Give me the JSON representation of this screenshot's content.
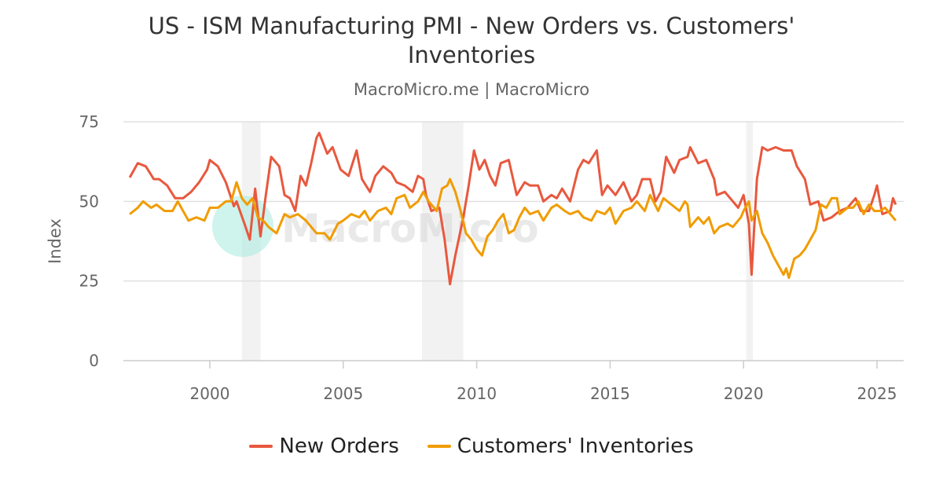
{
  "chart_data": {
    "type": "line",
    "title": "US - ISM Manufacturing PMI - New Orders vs. Customers' Inventories",
    "subtitle": "MacroMicro.me | MacroMicro",
    "watermark": "MacroMicro",
    "xlabel": "",
    "ylabel": "Index",
    "xlim": [
      1996.7,
      2026.0
    ],
    "ylim": [
      0,
      75
    ],
    "x_ticks": [
      "2000",
      "2005",
      "2010",
      "2015",
      "2020",
      "2025"
    ],
    "y_ticks": [
      "0",
      "25",
      "50",
      "75"
    ],
    "grid": true,
    "legend_position": "bottom",
    "recessions": [
      [
        2001.2,
        2001.9
      ],
      [
        2007.95,
        2009.5
      ],
      [
        2020.1,
        2020.35
      ]
    ],
    "series": [
      {
        "name": "New Orders",
        "color": "#e8583e",
        "points": [
          [
            1997.0,
            57.5
          ],
          [
            1997.3,
            62
          ],
          [
            1997.6,
            61
          ],
          [
            1997.9,
            57
          ],
          [
            1998.1,
            57
          ],
          [
            1998.4,
            55
          ],
          [
            1998.7,
            51
          ],
          [
            1999.0,
            51
          ],
          [
            1999.3,
            53
          ],
          [
            1999.6,
            56
          ],
          [
            1999.9,
            60
          ],
          [
            2000.0,
            63
          ],
          [
            2000.3,
            61
          ],
          [
            2000.6,
            56
          ],
          [
            2000.9,
            48.5
          ],
          [
            2001.0,
            50
          ],
          [
            2001.3,
            43
          ],
          [
            2001.5,
            38
          ],
          [
            2001.7,
            54
          ],
          [
            2001.9,
            39
          ],
          [
            2002.1,
            52
          ],
          [
            2002.3,
            64
          ],
          [
            2002.6,
            61
          ],
          [
            2002.8,
            52
          ],
          [
            2003.0,
            51
          ],
          [
            2003.2,
            47
          ],
          [
            2003.4,
            58
          ],
          [
            2003.6,
            55
          ],
          [
            2003.8,
            62
          ],
          [
            2004.0,
            70
          ],
          [
            2004.1,
            71.5
          ],
          [
            2004.4,
            65
          ],
          [
            2004.6,
            67
          ],
          [
            2004.9,
            60
          ],
          [
            2005.2,
            58
          ],
          [
            2005.5,
            66
          ],
          [
            2005.7,
            57
          ],
          [
            2006.0,
            53
          ],
          [
            2006.2,
            58
          ],
          [
            2006.5,
            61
          ],
          [
            2006.8,
            59
          ],
          [
            2007.0,
            56
          ],
          [
            2007.3,
            55
          ],
          [
            2007.6,
            53
          ],
          [
            2007.8,
            58
          ],
          [
            2008.0,
            57
          ],
          [
            2008.1,
            52
          ],
          [
            2008.3,
            47
          ],
          [
            2008.6,
            48
          ],
          [
            2008.8,
            38
          ],
          [
            2009.0,
            24
          ],
          [
            2009.2,
            33
          ],
          [
            2009.5,
            45
          ],
          [
            2009.7,
            55
          ],
          [
            2009.9,
            66
          ],
          [
            2010.1,
            60
          ],
          [
            2010.3,
            63
          ],
          [
            2010.5,
            58
          ],
          [
            2010.7,
            55
          ],
          [
            2010.9,
            62
          ],
          [
            2011.2,
            63
          ],
          [
            2011.5,
            52
          ],
          [
            2011.8,
            56
          ],
          [
            2012.0,
            55
          ],
          [
            2012.3,
            55
          ],
          [
            2012.5,
            50
          ],
          [
            2012.8,
            52
          ],
          [
            2013.0,
            51
          ],
          [
            2013.2,
            54
          ],
          [
            2013.5,
            50
          ],
          [
            2013.8,
            60
          ],
          [
            2014.0,
            63
          ],
          [
            2014.2,
            62
          ],
          [
            2014.5,
            66
          ],
          [
            2014.7,
            52
          ],
          [
            2014.9,
            55
          ],
          [
            2015.2,
            52
          ],
          [
            2015.5,
            56
          ],
          [
            2015.8,
            50
          ],
          [
            2016.0,
            52
          ],
          [
            2016.2,
            57
          ],
          [
            2016.5,
            57
          ],
          [
            2016.7,
            50
          ],
          [
            2016.9,
            53
          ],
          [
            2017.1,
            64
          ],
          [
            2017.4,
            59
          ],
          [
            2017.6,
            63
          ],
          [
            2017.9,
            64
          ],
          [
            2018.0,
            67
          ],
          [
            2018.3,
            62
          ],
          [
            2018.6,
            63
          ],
          [
            2018.9,
            57
          ],
          [
            2019.0,
            52
          ],
          [
            2019.3,
            53
          ],
          [
            2019.5,
            51
          ],
          [
            2019.8,
            48
          ],
          [
            2020.0,
            52
          ],
          [
            2020.2,
            43
          ],
          [
            2020.3,
            27
          ],
          [
            2020.5,
            57
          ],
          [
            2020.7,
            67
          ],
          [
            2020.9,
            66
          ],
          [
            2021.2,
            67
          ],
          [
            2021.5,
            66
          ],
          [
            2021.8,
            66
          ],
          [
            2022.0,
            61
          ],
          [
            2022.3,
            57
          ],
          [
            2022.5,
            49
          ],
          [
            2022.8,
            50
          ],
          [
            2023.0,
            44
          ],
          [
            2023.3,
            45
          ],
          [
            2023.6,
            47
          ],
          [
            2023.9,
            48
          ],
          [
            2024.2,
            51
          ],
          [
            2024.4,
            47
          ],
          [
            2024.7,
            47
          ],
          [
            2024.9,
            52
          ],
          [
            2025.0,
            55
          ],
          [
            2025.2,
            46
          ],
          [
            2025.5,
            47
          ],
          [
            2025.6,
            51
          ],
          [
            2025.7,
            49
          ]
        ]
      },
      {
        "name": "Customers' Inventories",
        "color": "#f09c00",
        "points": [
          [
            1997.0,
            46
          ],
          [
            1997.3,
            48
          ],
          [
            1997.5,
            50
          ],
          [
            1997.8,
            48
          ],
          [
            1998.0,
            49
          ],
          [
            1998.3,
            47
          ],
          [
            1998.6,
            47
          ],
          [
            1998.8,
            50
          ],
          [
            1999.0,
            47
          ],
          [
            1999.2,
            44
          ],
          [
            1999.5,
            45
          ],
          [
            1999.8,
            44
          ],
          [
            2000.0,
            48
          ],
          [
            2000.3,
            48
          ],
          [
            2000.6,
            50
          ],
          [
            2000.8,
            50
          ],
          [
            2001.0,
            56
          ],
          [
            2001.2,
            51
          ],
          [
            2001.4,
            49
          ],
          [
            2001.6,
            51
          ],
          [
            2001.8,
            45
          ],
          [
            2002.0,
            44
          ],
          [
            2002.2,
            42
          ],
          [
            2002.5,
            40
          ],
          [
            2002.8,
            46
          ],
          [
            2003.0,
            45
          ],
          [
            2003.3,
            46
          ],
          [
            2003.6,
            44
          ],
          [
            2003.8,
            42
          ],
          [
            2004.0,
            40
          ],
          [
            2004.3,
            40
          ],
          [
            2004.5,
            38
          ],
          [
            2004.8,
            43
          ],
          [
            2005.0,
            44
          ],
          [
            2005.3,
            46
          ],
          [
            2005.6,
            45
          ],
          [
            2005.8,
            47
          ],
          [
            2006.0,
            44
          ],
          [
            2006.3,
            47
          ],
          [
            2006.6,
            48
          ],
          [
            2006.8,
            46
          ],
          [
            2007.0,
            51
          ],
          [
            2007.3,
            52
          ],
          [
            2007.5,
            48
          ],
          [
            2007.8,
            50
          ],
          [
            2008.0,
            53
          ],
          [
            2008.2,
            50
          ],
          [
            2008.5,
            47
          ],
          [
            2008.7,
            54
          ],
          [
            2008.9,
            55
          ],
          [
            2009.0,
            57
          ],
          [
            2009.2,
            53
          ],
          [
            2009.4,
            47
          ],
          [
            2009.6,
            40
          ],
          [
            2009.8,
            38
          ],
          [
            2010.0,
            35
          ],
          [
            2010.2,
            33
          ],
          [
            2010.4,
            39
          ],
          [
            2010.6,
            41
          ],
          [
            2010.8,
            44
          ],
          [
            2011.0,
            46
          ],
          [
            2011.2,
            40
          ],
          [
            2011.4,
            41
          ],
          [
            2011.6,
            45
          ],
          [
            2011.8,
            48
          ],
          [
            2012.0,
            46
          ],
          [
            2012.3,
            47
          ],
          [
            2012.5,
            44
          ],
          [
            2012.8,
            48
          ],
          [
            2013.0,
            49
          ],
          [
            2013.3,
            47
          ],
          [
            2013.5,
            46
          ],
          [
            2013.8,
            47
          ],
          [
            2014.0,
            45
          ],
          [
            2014.3,
            44
          ],
          [
            2014.5,
            47
          ],
          [
            2014.8,
            46
          ],
          [
            2015.0,
            48
          ],
          [
            2015.2,
            43
          ],
          [
            2015.5,
            47
          ],
          [
            2015.8,
            48
          ],
          [
            2016.0,
            50
          ],
          [
            2016.3,
            47
          ],
          [
            2016.5,
            52
          ],
          [
            2016.8,
            47
          ],
          [
            2017.0,
            51
          ],
          [
            2017.3,
            49
          ],
          [
            2017.6,
            47
          ],
          [
            2017.8,
            50
          ],
          [
            2017.9,
            49
          ],
          [
            2018.0,
            42
          ],
          [
            2018.3,
            45
          ],
          [
            2018.5,
            43
          ],
          [
            2018.7,
            45
          ],
          [
            2018.9,
            40
          ],
          [
            2019.1,
            42
          ],
          [
            2019.4,
            43
          ],
          [
            2019.6,
            42
          ],
          [
            2019.9,
            45
          ],
          [
            2020.0,
            47
          ],
          [
            2020.2,
            50
          ],
          [
            2020.3,
            44
          ],
          [
            2020.5,
            47
          ],
          [
            2020.7,
            40
          ],
          [
            2020.9,
            37
          ],
          [
            2021.1,
            33
          ],
          [
            2021.3,
            30
          ],
          [
            2021.5,
            27
          ],
          [
            2021.6,
            29
          ],
          [
            2021.7,
            26
          ],
          [
            2021.9,
            32
          ],
          [
            2022.1,
            33
          ],
          [
            2022.3,
            35
          ],
          [
            2022.5,
            38
          ],
          [
            2022.7,
            41
          ],
          [
            2022.9,
            49
          ],
          [
            2023.1,
            48
          ],
          [
            2023.3,
            51
          ],
          [
            2023.5,
            51
          ],
          [
            2023.6,
            46
          ],
          [
            2023.9,
            48
          ],
          [
            2024.1,
            48
          ],
          [
            2024.3,
            50
          ],
          [
            2024.5,
            46
          ],
          [
            2024.7,
            49
          ],
          [
            2024.9,
            47
          ],
          [
            2025.1,
            47
          ],
          [
            2025.3,
            48
          ],
          [
            2025.5,
            46
          ],
          [
            2025.7,
            44
          ]
        ]
      }
    ]
  }
}
